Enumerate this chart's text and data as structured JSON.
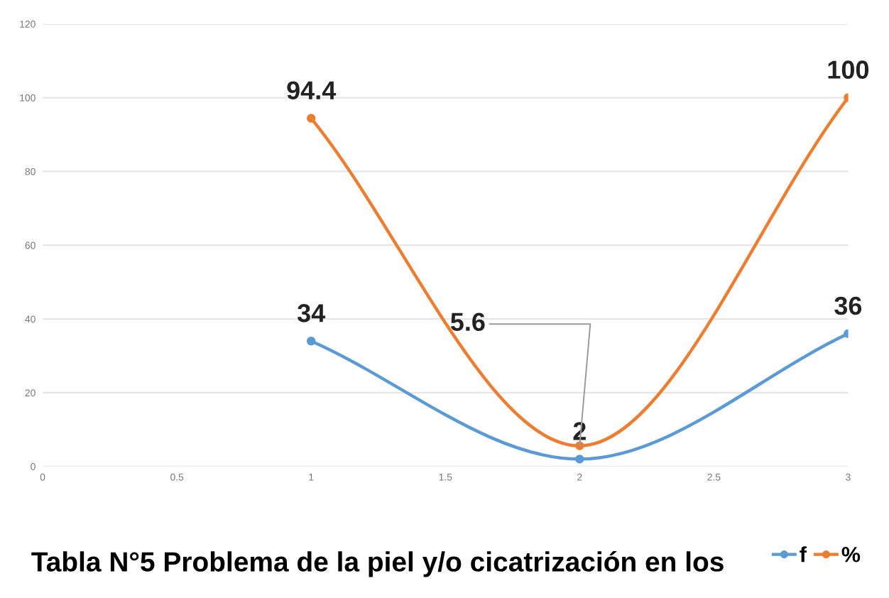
{
  "chart_data": {
    "type": "line",
    "title": "Tabla N°5 Problema de la piel y/o cicatrización en los",
    "x": [
      1,
      2,
      3
    ],
    "series": [
      {
        "name": "f",
        "color": "#5b9bd5",
        "values": [
          34,
          2,
          36
        ],
        "value_labels": [
          "34",
          "2",
          "36"
        ]
      },
      {
        "name": "%",
        "color": "#ed7d31",
        "values": [
          94.4,
          5.6,
          100
        ],
        "value_labels": [
          "94.4",
          null,
          "100"
        ]
      }
    ],
    "xlim": [
      0,
      3
    ],
    "xticks": [
      0,
      0.5,
      1,
      1.5,
      2,
      2.5,
      3
    ],
    "ylim": [
      0,
      120
    ],
    "yticks": [
      0,
      20,
      40,
      60,
      80,
      100,
      120
    ],
    "annotations": [
      {
        "text": "5.6",
        "x": 2,
        "y": 5.6
      }
    ],
    "grid": "y",
    "legend": "bottom right",
    "marker": "circle",
    "line_style": "solid"
  }
}
